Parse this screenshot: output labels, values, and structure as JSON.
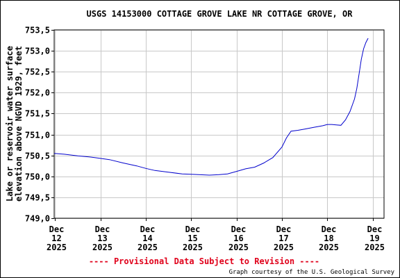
{
  "chart_data": {
    "type": "line",
    "title": "USGS 14153000 COTTAGE GROVE LAKE NR COTTAGE GROVE, OR",
    "ylabel_lines": [
      "Lake or reservoir water surface",
      "elevation above NGVD 1929, feet"
    ],
    "xlabel": "",
    "ylim": [
      749.0,
      753.5
    ],
    "yticks": [
      753.5,
      753.0,
      752.5,
      752.0,
      751.5,
      751.0,
      750.5,
      750.0,
      749.5,
      749.0
    ],
    "ytick_labels": [
      "753,5",
      "753,0",
      "752,5",
      "752,0",
      "751,5",
      "751,0",
      "750,5",
      "750,0",
      "749,5",
      "749,0"
    ],
    "xlim": [
      11.98,
      19.25
    ],
    "xticks": [
      {
        "pos": 12,
        "lines": [
          "Dec",
          "12",
          "2025"
        ]
      },
      {
        "pos": 13,
        "lines": [
          "Dec",
          "13",
          "2025"
        ]
      },
      {
        "pos": 14,
        "lines": [
          "Dec",
          "14",
          "2025"
        ]
      },
      {
        "pos": 15,
        "lines": [
          "Dec",
          "15",
          "2025"
        ]
      },
      {
        "pos": 16,
        "lines": [
          "Dec",
          "16",
          "2025"
        ]
      },
      {
        "pos": 17,
        "lines": [
          "Dec",
          "17",
          "2025"
        ]
      },
      {
        "pos": 18,
        "lines": [
          "Dec",
          "18",
          "2025"
        ]
      },
      {
        "pos": 19,
        "lines": [
          "Dec",
          "19",
          "2025"
        ]
      }
    ],
    "grid": true,
    "series": [
      {
        "color": "#0000cc",
        "x": [
          11.98,
          12.2,
          12.5,
          12.8,
          13.0,
          13.2,
          13.5,
          13.8,
          14.0,
          14.2,
          14.5,
          14.8,
          15.0,
          15.2,
          15.4,
          15.6,
          15.8,
          16.0,
          16.2,
          16.4,
          16.6,
          16.8,
          17.0,
          17.1,
          17.2,
          17.35,
          17.5,
          17.7,
          17.9,
          18.0,
          18.1,
          18.2,
          18.3,
          18.4,
          18.5,
          18.6,
          18.65,
          18.7,
          18.75,
          18.8,
          18.85,
          18.9
        ],
        "y": [
          750.55,
          750.53,
          750.49,
          750.46,
          750.43,
          750.4,
          750.32,
          750.25,
          750.19,
          750.14,
          750.1,
          750.06,
          750.05,
          750.04,
          750.03,
          750.04,
          750.06,
          750.12,
          750.18,
          750.22,
          750.32,
          750.45,
          750.7,
          750.92,
          751.08,
          751.1,
          751.13,
          751.17,
          751.21,
          751.24,
          751.24,
          751.23,
          751.22,
          751.35,
          751.55,
          751.85,
          752.1,
          752.45,
          752.8,
          753.05,
          753.2,
          753.3
        ]
      }
    ]
  },
  "provisional_text": "---- Provisional Data Subject to Revision ----",
  "credit_text": "Graph courtesy of the U.S. Geological Survey"
}
